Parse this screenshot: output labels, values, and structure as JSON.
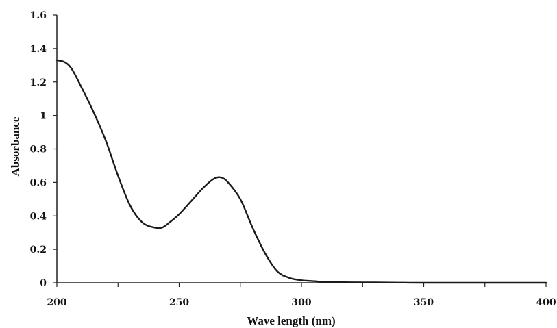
{
  "chart_data": {
    "type": "line",
    "title": "",
    "xlabel": "Wave length (nm)",
    "ylabel": "Absorbance",
    "xlim": [
      200,
      400
    ],
    "ylim": [
      0,
      1.6
    ],
    "x_ticks": [
      200,
      250,
      300,
      350,
      400
    ],
    "x_tick_labels": [
      "200",
      "250",
      "300",
      "350",
      "400"
    ],
    "y_ticks": [
      0,
      0.2,
      0.4,
      0.6,
      0.8,
      1,
      1.2,
      1.4,
      1.6
    ],
    "y_tick_labels": [
      "0",
      "0.2",
      "0.4",
      "0.6",
      "0.8",
      "1",
      "1.2",
      "1.4",
      "1.6"
    ],
    "grid": false,
    "legend": "none",
    "line_color": "#1a1a1a",
    "series": [
      {
        "x": [
          200,
          203,
          206,
          210,
          215,
          220,
          225,
          230,
          235,
          240,
          243,
          246,
          250,
          255,
          260,
          264,
          267,
          270,
          275,
          280,
          285,
          290,
          295,
          300,
          305,
          310,
          320,
          330,
          340,
          350,
          400
        ],
        "y": [
          1.33,
          1.32,
          1.28,
          1.17,
          1.02,
          0.85,
          0.64,
          0.46,
          0.36,
          0.33,
          0.33,
          0.36,
          0.41,
          0.49,
          0.57,
          0.62,
          0.63,
          0.6,
          0.5,
          0.33,
          0.18,
          0.07,
          0.03,
          0.015,
          0.01,
          0.005,
          0.003,
          0.002,
          0.001,
          0.0,
          0.0
        ]
      }
    ]
  }
}
